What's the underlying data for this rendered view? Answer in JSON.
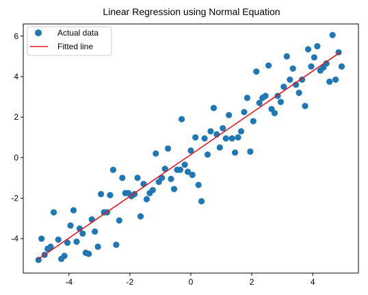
{
  "chart_data": {
    "type": "scatter",
    "title": "Linear Regression using Normal Equation",
    "xlabel": "",
    "ylabel": "",
    "xlim": [
      -5.5,
      5.5
    ],
    "ylim": [
      -5.7,
      6.6
    ],
    "xticks": [
      -4,
      -2,
      0,
      2,
      4
    ],
    "xtick_labels": [
      "-4",
      "-2",
      "0",
      "2",
      "4"
    ],
    "yticks": [
      -4,
      -2,
      0,
      2,
      4,
      6
    ],
    "ytick_labels": [
      "-4",
      "-2",
      "0",
      "2",
      "4",
      "6"
    ],
    "grid": false,
    "legend": {
      "position": "top-left",
      "entries": [
        "Actual data",
        "Fitted line"
      ]
    },
    "colors": {
      "points": "#1f77b4",
      "line": "#e8141c"
    },
    "series": [
      {
        "name": "Actual data",
        "kind": "scatter",
        "points": [
          [
            -5.0,
            -5.05
          ],
          [
            -4.9,
            -4.0
          ],
          [
            -4.8,
            -4.8
          ],
          [
            -4.7,
            -4.5
          ],
          [
            -4.6,
            -4.4
          ],
          [
            -4.5,
            -2.7
          ],
          [
            -4.35,
            -4.05
          ],
          [
            -4.25,
            -5.0
          ],
          [
            -4.15,
            -4.85
          ],
          [
            -4.05,
            -4.2
          ],
          [
            -3.95,
            -3.35
          ],
          [
            -3.85,
            -2.6
          ],
          [
            -3.75,
            -4.15
          ],
          [
            -3.65,
            -3.5
          ],
          [
            -3.55,
            -3.75
          ],
          [
            -3.45,
            -4.7
          ],
          [
            -3.35,
            -4.75
          ],
          [
            -3.25,
            -3.05
          ],
          [
            -3.15,
            -3.65
          ],
          [
            -3.05,
            -4.4
          ],
          [
            -2.95,
            -1.8
          ],
          [
            -2.85,
            -2.7
          ],
          [
            -2.75,
            -2.7
          ],
          [
            -2.65,
            -1.85
          ],
          [
            -2.55,
            -0.6
          ],
          [
            -2.45,
            -4.3
          ],
          [
            -2.35,
            -3.1
          ],
          [
            -2.25,
            -1.0
          ],
          [
            -2.15,
            -1.75
          ],
          [
            -2.05,
            -1.75
          ],
          [
            -1.95,
            -1.9
          ],
          [
            -1.85,
            -1.8
          ],
          [
            -1.75,
            -1.0
          ],
          [
            -1.65,
            -2.9
          ],
          [
            -1.55,
            -1.3
          ],
          [
            -1.45,
            -2.05
          ],
          [
            -1.35,
            -1.75
          ],
          [
            -1.25,
            -1.6
          ],
          [
            -1.15,
            0.2
          ],
          [
            -1.05,
            -1.2
          ],
          [
            -0.95,
            -1.0
          ],
          [
            -0.85,
            -0.55
          ],
          [
            -0.75,
            0.45
          ],
          [
            -0.65,
            -1.05
          ],
          [
            -0.55,
            -1.55
          ],
          [
            -0.45,
            -0.6
          ],
          [
            -0.35,
            -0.6
          ],
          [
            -0.3,
            1.9
          ],
          [
            -0.2,
            -0.35
          ],
          [
            -0.1,
            -0.7
          ],
          [
            0.0,
            0.35
          ],
          [
            0.05,
            -0.85
          ],
          [
            0.15,
            1.0
          ],
          [
            0.25,
            -1.35
          ],
          [
            0.35,
            -2.15
          ],
          [
            0.45,
            0.95
          ],
          [
            0.55,
            0.15
          ],
          [
            0.65,
            1.3
          ],
          [
            0.75,
            2.45
          ],
          [
            0.85,
            1.15
          ],
          [
            0.95,
            0.5
          ],
          [
            1.05,
            1.45
          ],
          [
            1.15,
            0.95
          ],
          [
            1.25,
            2.1
          ],
          [
            1.35,
            0.95
          ],
          [
            1.45,
            0.25
          ],
          [
            1.55,
            1.0
          ],
          [
            1.65,
            1.3
          ],
          [
            1.75,
            2.25
          ],
          [
            1.85,
            2.95
          ],
          [
            1.95,
            0.3
          ],
          [
            2.05,
            1.8
          ],
          [
            2.15,
            4.25
          ],
          [
            2.25,
            2.7
          ],
          [
            2.35,
            2.95
          ],
          [
            2.45,
            3.05
          ],
          [
            2.55,
            4.55
          ],
          [
            2.65,
            2.4
          ],
          [
            2.75,
            2.2
          ],
          [
            2.85,
            3.05
          ],
          [
            2.95,
            2.75
          ],
          [
            3.05,
            3.5
          ],
          [
            3.15,
            5.0
          ],
          [
            3.25,
            3.85
          ],
          [
            3.35,
            4.4
          ],
          [
            3.45,
            3.6
          ],
          [
            3.55,
            3.2
          ],
          [
            3.65,
            3.85
          ],
          [
            3.75,
            2.55
          ],
          [
            3.85,
            5.35
          ],
          [
            3.95,
            4.5
          ],
          [
            4.05,
            4.95
          ],
          [
            4.15,
            5.5
          ],
          [
            4.25,
            4.3
          ],
          [
            4.35,
            4.45
          ],
          [
            4.45,
            4.65
          ],
          [
            4.55,
            3.75
          ],
          [
            4.65,
            6.05
          ],
          [
            4.75,
            3.85
          ],
          [
            4.85,
            5.2
          ],
          [
            4.95,
            4.5
          ]
        ]
      },
      {
        "name": "Fitted line",
        "kind": "line",
        "points": [
          [
            -5.0,
            -5.0
          ],
          [
            4.9,
            5.2
          ]
        ]
      }
    ]
  }
}
